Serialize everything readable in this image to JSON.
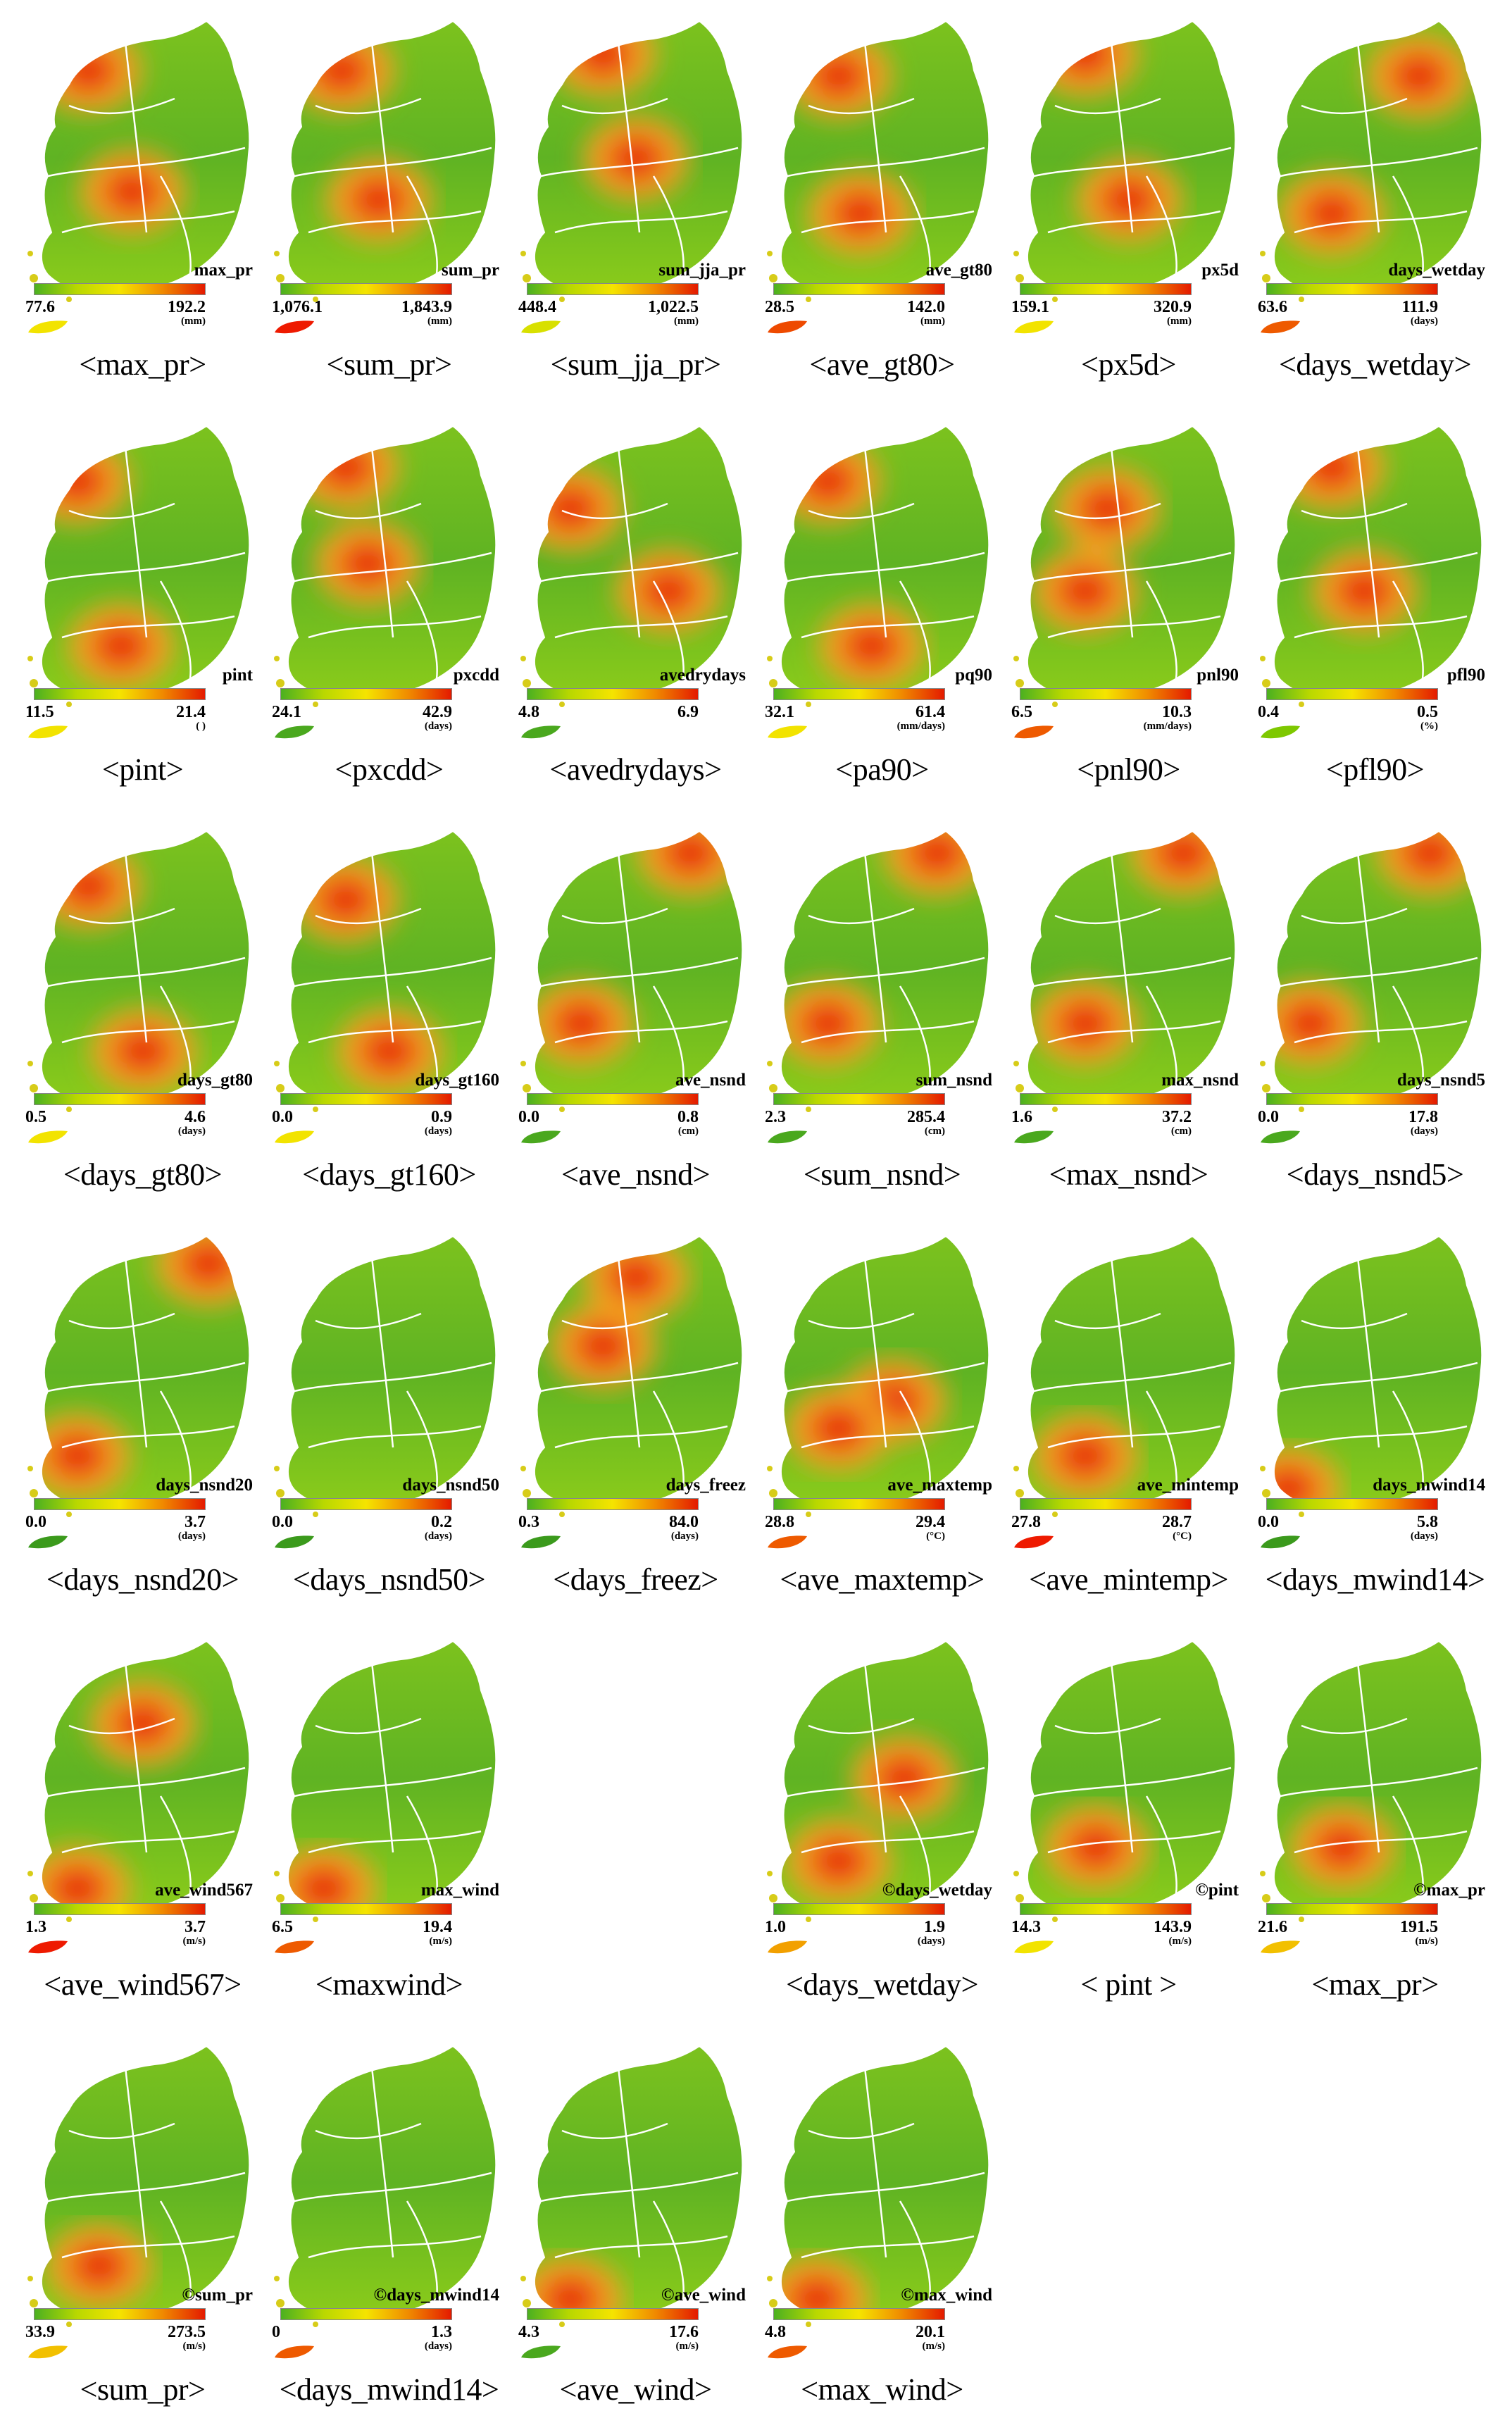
{
  "figure": {
    "panels": [
      {
        "caption": "<max_pr>",
        "var": "max_pr",
        "min": "77.6",
        "max": "192.2",
        "unit": "(mm)",
        "scheme": "ygr",
        "leaf": "#f2e300",
        "hot": [
          [
            0.25,
            0.18
          ],
          [
            0.45,
            0.62
          ]
        ]
      },
      {
        "caption": "<sum_pr>",
        "var": "sum_pr",
        "min": "1,076.1",
        "max": "1,843.9",
        "unit": "(mm)",
        "scheme": "yr",
        "leaf": "#ee1a00",
        "hot": [
          [
            0.28,
            0.18
          ],
          [
            0.45,
            0.65
          ]
        ]
      },
      {
        "caption": "<sum_jja_pr>",
        "var": "sum_jja_pr",
        "min": "448.4",
        "max": "1,022.5",
        "unit": "(mm)",
        "scheme": "ygr",
        "leaf": "#d8e000",
        "hot": [
          [
            0.35,
            0.12
          ],
          [
            0.5,
            0.5
          ]
        ]
      },
      {
        "caption": "<ave_gt80>",
        "var": "ave_gt80",
        "min": "28.5",
        "max": "142.0",
        "unit": "(mm)",
        "scheme": "ygr",
        "leaf": "#ee4a00",
        "hot": [
          [
            0.3,
            0.2
          ],
          [
            0.4,
            0.7
          ]
        ]
      },
      {
        "caption": "<px5d>",
        "var": "px5d",
        "min": "159.1",
        "max": "320.9",
        "unit": "(mm)",
        "scheme": "ygr",
        "leaf": "#f2e300",
        "hot": [
          [
            0.3,
            0.12
          ],
          [
            0.5,
            0.65
          ]
        ]
      },
      {
        "caption": "<days_wetday>",
        "var": "days_wetday",
        "min": "63.6",
        "max": "111.9",
        "unit": "(days)",
        "scheme": "ygr",
        "leaf": "#ee5a00",
        "hot": [
          [
            0.7,
            0.2
          ],
          [
            0.3,
            0.7
          ]
        ]
      },
      {
        "caption": "<pint>",
        "var": "pint",
        "min": "11.5",
        "max": "21.4",
        "unit": "( )",
        "scheme": "ygr",
        "leaf": "#f2e300",
        "hot": [
          [
            0.2,
            0.2
          ],
          [
            0.4,
            0.8
          ]
        ]
      },
      {
        "caption": "<pxcdd>",
        "var": "pxcdd",
        "min": "24.1",
        "max": "42.9",
        "unit": "(days)",
        "scheme": "ygr",
        "leaf": "#4aa81e",
        "hot": [
          [
            0.3,
            0.15
          ],
          [
            0.4,
            0.5
          ]
        ]
      },
      {
        "caption": "<avedrydays>",
        "var": "avedrydays",
        "min": "4.8",
        "max": "6.9",
        "unit": "",
        "scheme": "ygr",
        "leaf": "#4aa81e",
        "hot": [
          [
            0.2,
            0.3
          ],
          [
            0.65,
            0.6
          ]
        ]
      },
      {
        "caption": "<pa90>",
        "var": "pq90",
        "min": "32.1",
        "max": "61.4",
        "unit": "(mm/days)",
        "scheme": "ygr",
        "leaf": "#f2e300",
        "hot": [
          [
            0.25,
            0.2
          ],
          [
            0.45,
            0.8
          ]
        ]
      },
      {
        "caption": "<pnl90>",
        "var": "pnl90",
        "min": "6.5",
        "max": "10.3",
        "unit": "(mm/days)",
        "scheme": "ygr",
        "leaf": "#ee5a00",
        "hot": [
          [
            0.4,
            0.3
          ],
          [
            0.3,
            0.6
          ]
        ]
      },
      {
        "caption": "<pfl90>",
        "var": "pfl90",
        "min": "0.4",
        "max": "0.5",
        "unit": "(%)",
        "scheme": "ygr",
        "leaf": "#7ec800",
        "hot": [
          [
            0.3,
            0.15
          ],
          [
            0.45,
            0.6
          ]
        ]
      },
      {
        "caption": "<days_gt80>",
        "var": "days_gt80",
        "min": "0.5",
        "max": "4.6",
        "unit": "(days)",
        "scheme": "ygr",
        "leaf": "#f2e300",
        "hot": [
          [
            0.25,
            0.2
          ],
          [
            0.5,
            0.8
          ]
        ]
      },
      {
        "caption": "<days_gt160>",
        "var": "days_gt160",
        "min": "0.0",
        "max": "0.9",
        "unit": "(days)",
        "scheme": "ygr",
        "leaf": "#f2e300",
        "hot": [
          [
            0.3,
            0.25
          ],
          [
            0.5,
            0.8
          ]
        ]
      },
      {
        "caption": "<ave_nsnd>",
        "var": "ave_nsnd",
        "min": "0.0",
        "max": "0.8",
        "unit": "(cm)",
        "scheme": "ygr",
        "leaf": "#4aa81e",
        "hot": [
          [
            0.75,
            0.08
          ],
          [
            0.25,
            0.7
          ]
        ]
      },
      {
        "caption": "<sum_nsnd>",
        "var": "sum_nsnd",
        "min": "2.3",
        "max": "285.4",
        "unit": "(cm)",
        "scheme": "ygr",
        "leaf": "#4aa81e",
        "hot": [
          [
            0.75,
            0.08
          ],
          [
            0.25,
            0.7
          ]
        ]
      },
      {
        "caption": "<max_nsnd>",
        "var": "max_nsnd",
        "min": "1.6",
        "max": "37.2",
        "unit": "(cm)",
        "scheme": "ygr",
        "leaf": "#4aa81e",
        "hot": [
          [
            0.75,
            0.08
          ],
          [
            0.3,
            0.7
          ]
        ]
      },
      {
        "caption": "<days_nsnd5>",
        "var": "days_nsnd5",
        "min": "0.0",
        "max": "17.8",
        "unit": "(days)",
        "scheme": "ygr",
        "leaf": "#4aa81e",
        "hot": [
          [
            0.75,
            0.08
          ],
          [
            0.2,
            0.7
          ]
        ]
      },
      {
        "caption": "<days_nsnd20>",
        "var": "days_nsnd20",
        "min": "0.0",
        "max": "3.7",
        "unit": "(days)",
        "scheme": "ygr",
        "leaf": "#3b9a1c",
        "hot": [
          [
            0.8,
            0.1
          ],
          [
            0.2,
            0.8
          ]
        ]
      },
      {
        "caption": "<days_nsnd50>",
        "var": "days_nsnd50",
        "min": "0.0",
        "max": "0.2",
        "unit": "(days)",
        "scheme": "ygr",
        "leaf": "#3b9a1c",
        "hot": []
      },
      {
        "caption": "<days_freez>",
        "var": "days_freez",
        "min": "0.3",
        "max": "84.0",
        "unit": "(days)",
        "scheme": "ygr",
        "leaf": "#3b9a1c",
        "hot": [
          [
            0.5,
            0.15
          ],
          [
            0.35,
            0.4
          ]
        ]
      },
      {
        "caption": "<ave_maxtemp>",
        "var": "ave_maxtemp",
        "min": "28.8",
        "max": "29.4",
        "unit": "(°C)",
        "scheme": "ygr",
        "leaf": "#ee5a00",
        "hot": [
          [
            0.55,
            0.6
          ],
          [
            0.3,
            0.7
          ]
        ]
      },
      {
        "caption": "<ave_mintemp>",
        "var": "ave_mintemp",
        "min": "27.8",
        "max": "28.7",
        "unit": "(°C)",
        "scheme": "ygr",
        "leaf": "#ee1a00",
        "hot": [
          [
            0.3,
            0.8
          ]
        ]
      },
      {
        "caption": "<days_mwind14>",
        "var": "days_mwind14",
        "min": "0.0",
        "max": "5.8",
        "unit": "(days)",
        "scheme": "ygr",
        "leaf": "#3b9a1c",
        "hot": [
          [
            0.1,
            0.92
          ]
        ]
      },
      {
        "caption": "<ave_wind567>",
        "var": "ave_wind567",
        "min": "1.3",
        "max": "3.7",
        "unit": "(m/s)",
        "scheme": "ygr",
        "leaf": "#ee1a00",
        "hot": [
          [
            0.2,
            0.9
          ],
          [
            0.5,
            0.3
          ]
        ]
      },
      {
        "caption": "<maxwind>",
        "var": "max_wind",
        "min": "6.5",
        "max": "19.4",
        "unit": "(m/s)",
        "scheme": "ygr",
        "leaf": "#ee5a00",
        "hot": [
          [
            0.2,
            0.9
          ]
        ]
      },
      {
        "caption": "<days_wetday>",
        "var": "©days_wetday",
        "min": "1.0",
        "max": "1.9",
        "unit": "(days)",
        "scheme": "ygr",
        "leaf": "#f2a000",
        "hot": [
          [
            0.6,
            0.5
          ],
          [
            0.3,
            0.8
          ]
        ]
      },
      {
        "caption": "< pint >",
        "var": "©pint",
        "min": "14.3",
        "max": "143.9",
        "unit": "(m/s)",
        "scheme": "ygr",
        "leaf": "#f2e300",
        "hot": [
          [
            0.35,
            0.75
          ]
        ]
      },
      {
        "caption": "<max_pr>",
        "var": "©max_pr",
        "min": "21.6",
        "max": "191.5",
        "unit": "(m/s)",
        "scheme": "ygr",
        "leaf": "#f2c000",
        "hot": [
          [
            0.35,
            0.75
          ]
        ]
      },
      {
        "caption": "<sum_pr>",
        "var": "©sum_pr",
        "min": "33.9",
        "max": "273.5",
        "unit": "(m/s)",
        "scheme": "ygr",
        "leaf": "#f2c000",
        "hot": [
          [
            0.3,
            0.8
          ]
        ]
      },
      {
        "caption": "<days_mwind14>",
        "var": "©days_mwind14",
        "min": "0",
        "max": "1.3",
        "unit": "(days)",
        "scheme": "ygr",
        "leaf": "#ee5a00",
        "hot": []
      },
      {
        "caption": "<ave_wind>",
        "var": "©ave_wind",
        "min": "4.3",
        "max": "17.6",
        "unit": "(m/s)",
        "scheme": "ygr",
        "leaf": "#4aa81e",
        "hot": [
          [
            0.2,
            0.92
          ]
        ]
      },
      {
        "caption": "<max_wind>",
        "var": "©max_wind",
        "min": "4.8",
        "max": "20.1",
        "unit": "(m/s)",
        "scheme": "ygr",
        "leaf": "#ee5a00",
        "hot": [
          [
            0.2,
            0.92
          ]
        ]
      }
    ]
  }
}
